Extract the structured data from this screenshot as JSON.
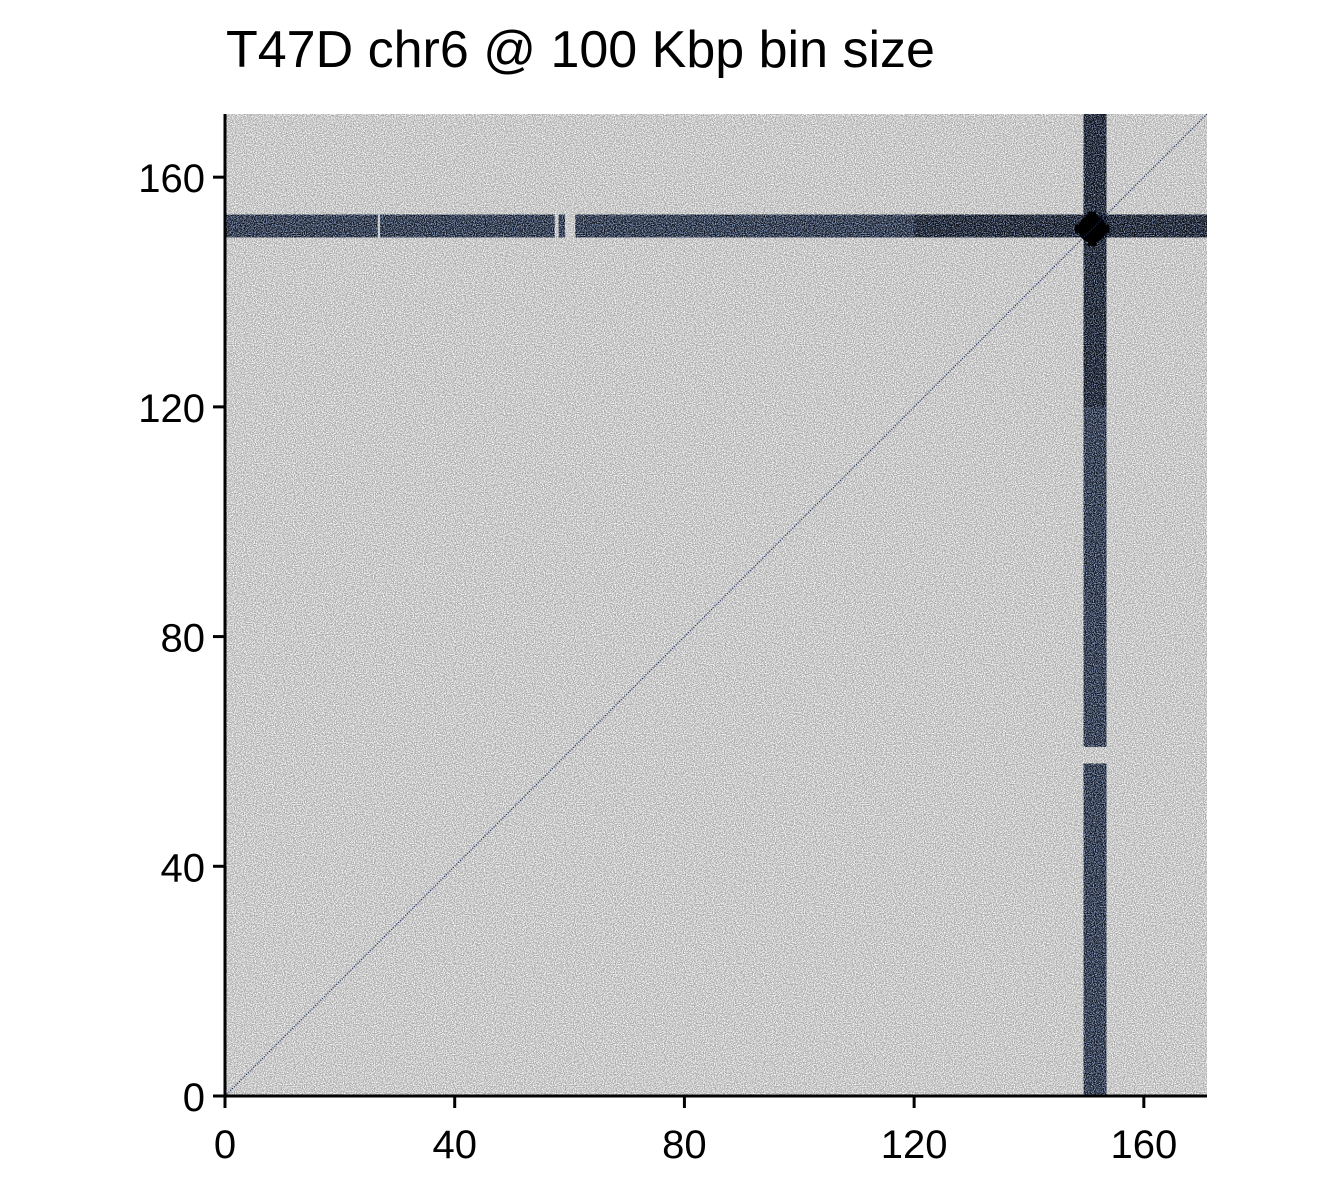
{
  "chart_data": {
    "type": "heatmap",
    "title": "T47D chr6 @ 100 Kbp bin size",
    "xlabel": "",
    "ylabel": "",
    "xlim": [
      0,
      171
    ],
    "ylim": [
      0,
      171
    ],
    "x_ticks": [
      0,
      40,
      80,
      120,
      160
    ],
    "y_ticks": [
      0,
      40,
      80,
      120,
      160
    ],
    "x_tick_labels": [
      "0",
      "40",
      "80",
      "120",
      "160"
    ],
    "y_tick_labels": [
      "0",
      "40",
      "80",
      "120",
      "160"
    ],
    "grid": false,
    "legend": "none",
    "colors": {
      "low": "#ffffff",
      "mid": "#4a72c0",
      "high": "#000000"
    },
    "diagonal": {
      "from": 0,
      "to": 171
    },
    "hotspot": {
      "x": 151,
      "y": 151
    },
    "enriched_bands": [
      {
        "orientation": "horizontal",
        "from": 149.5,
        "to": 153.5,
        "span": [
          0,
          171
        ],
        "gaps": [
          [
            26.6,
            27.0
          ],
          [
            57.4,
            58.1
          ],
          [
            59.2,
            61.0
          ]
        ]
      },
      {
        "orientation": "vertical",
        "from": 149.5,
        "to": 153.5,
        "span": [
          0,
          171
        ],
        "gaps": [
          [
            57.9,
            60.8
          ]
        ]
      }
    ]
  }
}
